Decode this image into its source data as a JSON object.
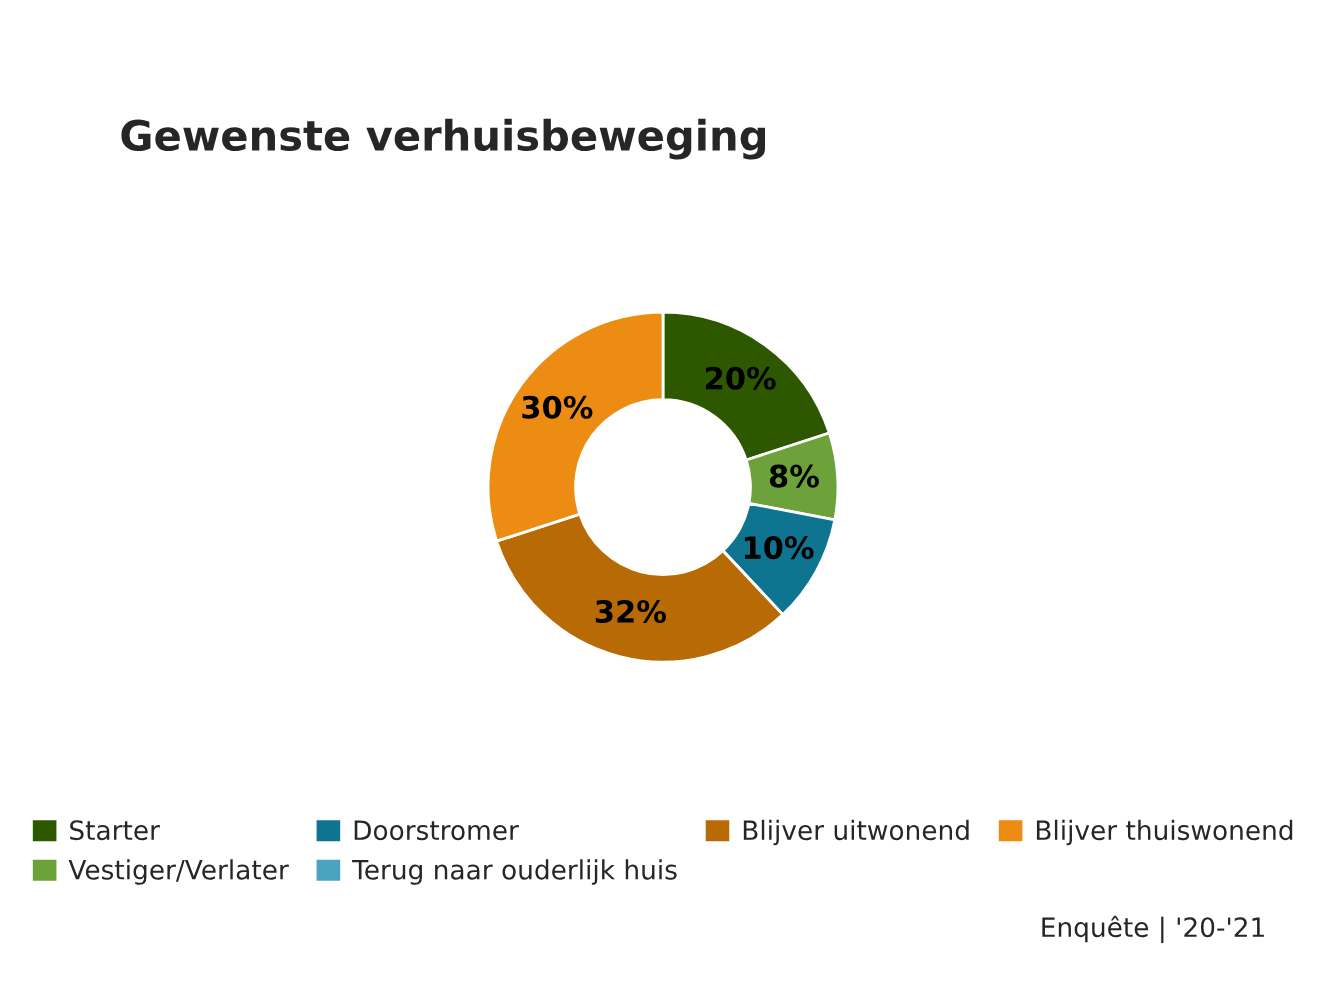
{
  "chart_data": {
    "type": "donut",
    "title": "Gewenste verhuisbeweging",
    "categories": [
      "Starter",
      "Vestiger/Verlater",
      "Doorstromer",
      "Terug naar ouderlijk huis",
      "Blijver uitwonend",
      "Blijver thuiswonend"
    ],
    "values": [
      20,
      8,
      10,
      0,
      32,
      30
    ],
    "colors": [
      "#2d5800",
      "#6da23a",
      "#0f7490",
      "#4aa3bf",
      "#b86a05",
      "#ec8c12"
    ],
    "value_labels": [
      "20%",
      "8%",
      "10%",
      null,
      "32%",
      "30%"
    ],
    "legend": "bottom",
    "annotations": [
      "Enquête | '20-'21"
    ]
  }
}
